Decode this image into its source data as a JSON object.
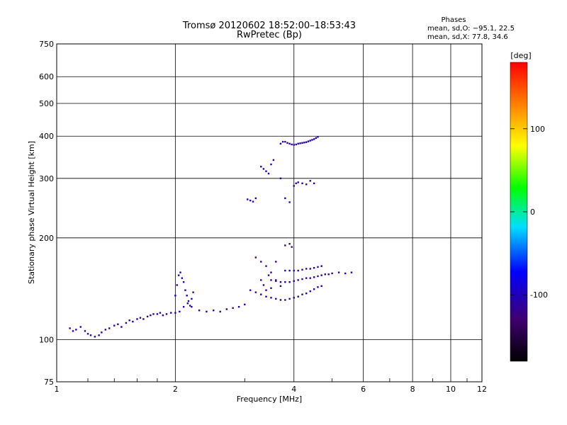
{
  "chart_data": {
    "type": "scatter",
    "title": "Tromsø 20120602 18:52:00–18:53:43",
    "subtitle": "RwPretec (Bp)",
    "xlabel": "Frequency [MHz]",
    "ylabel": "Stationary phase Virtual Height [km]",
    "x_scale": "log",
    "y_scale": "log",
    "xlim": [
      1,
      12
    ],
    "ylim": [
      75,
      750
    ],
    "x_ticks": [
      1,
      2,
      4,
      6,
      8,
      10,
      12
    ],
    "y_ticks": [
      75,
      100,
      200,
      300,
      400,
      500,
      600,
      750
    ],
    "grid": true,
    "legend": {
      "title": "Phases",
      "lines": [
        "mean, sd,O: −95.1, 22.5",
        "mean, sd,X:  77.8, 34.6"
      ]
    },
    "colorbar": {
      "label": "[deg]",
      "ticks": [
        100,
        0,
        -100
      ],
      "range": [
        -180,
        180
      ],
      "colors": [
        "#000000",
        "#400070",
        "#0000ff",
        "#00e0ff",
        "#00ff00",
        "#ffff00",
        "#ff8000",
        "#ff0000"
      ]
    },
    "series": [
      {
        "trace": "lower",
        "phase": -110,
        "points": [
          [
            1.08,
            108
          ],
          [
            1.1,
            106
          ],
          [
            1.12,
            107
          ],
          [
            1.15,
            109
          ],
          [
            1.18,
            106
          ],
          [
            1.2,
            104
          ],
          [
            1.22,
            103
          ],
          [
            1.25,
            102
          ],
          [
            1.28,
            103
          ],
          [
            1.3,
            105
          ],
          [
            1.33,
            107
          ],
          [
            1.36,
            108
          ],
          [
            1.4,
            110
          ],
          [
            1.43,
            111
          ],
          [
            1.46,
            109
          ],
          [
            1.5,
            112
          ],
          [
            1.53,
            114
          ],
          [
            1.56,
            113
          ],
          [
            1.6,
            115
          ],
          [
            1.63,
            116
          ],
          [
            1.66,
            115
          ],
          [
            1.7,
            117
          ],
          [
            1.73,
            118
          ],
          [
            1.76,
            119
          ],
          [
            1.8,
            119
          ],
          [
            1.83,
            120
          ],
          [
            1.86,
            118
          ],
          [
            1.9,
            119
          ],
          [
            1.95,
            120
          ],
          [
            2.0,
            120
          ],
          [
            2.05,
            121
          ],
          [
            2.1,
            125
          ],
          [
            2.15,
            128
          ],
          [
            2.2,
            125
          ],
          [
            2.3,
            122
          ],
          [
            2.4,
            121
          ],
          [
            2.5,
            122
          ],
          [
            2.6,
            121
          ],
          [
            2.7,
            123
          ],
          [
            2.8,
            124
          ],
          [
            2.9,
            125
          ],
          [
            3.0,
            127
          ]
        ]
      },
      {
        "trace": "e-layer",
        "phase": -100,
        "points": [
          [
            2.0,
            135
          ],
          [
            2.02,
            145
          ],
          [
            2.04,
            155
          ],
          [
            2.06,
            158
          ],
          [
            2.08,
            152
          ],
          [
            2.1,
            148
          ],
          [
            2.12,
            140
          ],
          [
            2.14,
            135
          ],
          [
            2.16,
            130
          ],
          [
            2.18,
            126
          ],
          [
            2.2,
            132
          ],
          [
            2.22,
            138
          ]
        ]
      },
      {
        "trace": "f-a",
        "phase": -110,
        "points": [
          [
            3.1,
            140
          ],
          [
            3.2,
            138
          ],
          [
            3.3,
            136
          ],
          [
            3.4,
            134
          ],
          [
            3.5,
            133
          ],
          [
            3.6,
            132
          ],
          [
            3.7,
            131
          ],
          [
            3.8,
            131
          ],
          [
            3.9,
            132
          ],
          [
            4.0,
            133
          ],
          [
            4.1,
            134
          ],
          [
            4.2,
            136
          ],
          [
            4.3,
            137
          ],
          [
            4.4,
            139
          ],
          [
            4.5,
            141
          ],
          [
            4.6,
            143
          ],
          [
            4.7,
            144
          ]
        ]
      },
      {
        "trace": "f-b",
        "phase": -110,
        "points": [
          [
            3.5,
            150
          ],
          [
            3.6,
            149
          ],
          [
            3.7,
            148
          ],
          [
            3.8,
            148
          ],
          [
            3.9,
            148
          ],
          [
            4.0,
            149
          ],
          [
            4.1,
            150
          ],
          [
            4.2,
            151
          ],
          [
            4.3,
            152
          ],
          [
            4.4,
            152
          ],
          [
            4.5,
            153
          ],
          [
            4.6,
            154
          ],
          [
            4.7,
            155
          ],
          [
            4.8,
            156
          ],
          [
            4.9,
            156
          ],
          [
            5.0,
            157
          ],
          [
            5.2,
            158
          ],
          [
            5.4,
            157
          ],
          [
            5.6,
            158
          ]
        ]
      },
      {
        "trace": "f-c",
        "phase": -110,
        "points": [
          [
            3.8,
            160
          ],
          [
            3.9,
            160
          ],
          [
            4.0,
            160
          ],
          [
            4.1,
            160
          ],
          [
            4.2,
            161
          ],
          [
            4.3,
            162
          ],
          [
            4.4,
            162
          ],
          [
            4.5,
            163
          ],
          [
            4.6,
            164
          ],
          [
            4.7,
            165
          ]
        ]
      },
      {
        "trace": "f-d",
        "phase": -120,
        "points": [
          [
            3.2,
            175
          ],
          [
            3.3,
            170
          ],
          [
            3.4,
            165
          ],
          [
            3.5,
            158
          ],
          [
            3.6,
            150
          ],
          [
            3.7,
            144
          ],
          [
            3.3,
            150
          ],
          [
            3.35,
            145
          ],
          [
            3.4,
            140
          ],
          [
            3.45,
            155
          ],
          [
            3.5,
            142
          ],
          [
            3.6,
            170
          ],
          [
            3.8,
            190
          ],
          [
            3.9,
            192
          ],
          [
            3.95,
            188
          ]
        ]
      },
      {
        "trace": "f2",
        "phase": -110,
        "points": [
          [
            3.05,
            260
          ],
          [
            3.1,
            258
          ],
          [
            3.15,
            256
          ],
          [
            3.2,
            262
          ],
          [
            3.3,
            325
          ],
          [
            3.35,
            320
          ],
          [
            3.4,
            315
          ],
          [
            3.45,
            310
          ],
          [
            3.5,
            330
          ],
          [
            3.55,
            340
          ],
          [
            3.7,
            300
          ],
          [
            3.8,
            262
          ],
          [
            3.9,
            255
          ],
          [
            4.0,
            285
          ],
          [
            4.05,
            290
          ],
          [
            4.1,
            292
          ],
          [
            4.2,
            290
          ],
          [
            4.3,
            288
          ],
          [
            4.4,
            295
          ],
          [
            4.5,
            290
          ]
        ]
      },
      {
        "trace": "f2-upper",
        "phase": -110,
        "points": [
          [
            3.7,
            380
          ],
          [
            3.75,
            385
          ],
          [
            3.8,
            385
          ],
          [
            3.85,
            382
          ],
          [
            3.9,
            380
          ],
          [
            3.95,
            378
          ],
          [
            4.0,
            377
          ],
          [
            4.05,
            378
          ],
          [
            4.1,
            380
          ],
          [
            4.15,
            381
          ],
          [
            4.2,
            382
          ],
          [
            4.25,
            383
          ],
          [
            4.3,
            384
          ],
          [
            4.35,
            386
          ],
          [
            4.4,
            388
          ],
          [
            4.45,
            390
          ],
          [
            4.5,
            392
          ],
          [
            4.55,
            395
          ],
          [
            4.6,
            398
          ]
        ]
      }
    ]
  }
}
